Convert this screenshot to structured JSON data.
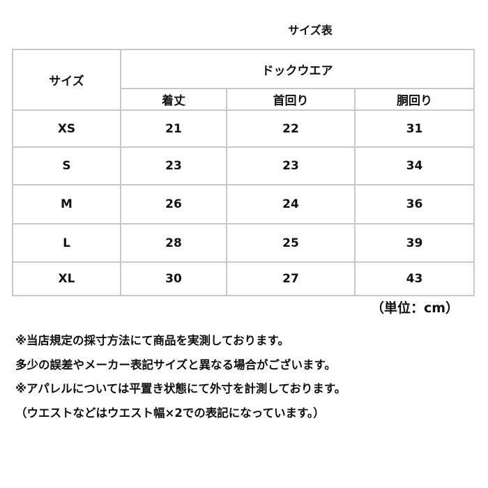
{
  "title": "サイズ表",
  "table": {
    "size_header": "サイズ",
    "group_header": "ドックウエア",
    "columns": [
      "着丈",
      "首回り",
      "胴回り"
    ],
    "rows": [
      {
        "size": "XS",
        "values": [
          "21",
          "22",
          "31"
        ]
      },
      {
        "size": "S",
        "values": [
          "23",
          "23",
          "34"
        ]
      },
      {
        "size": "M",
        "values": [
          "26",
          "24",
          "36"
        ]
      },
      {
        "size": "L",
        "values": [
          "28",
          "25",
          "39"
        ]
      },
      {
        "size": "XL",
        "values": [
          "30",
          "27",
          "43"
        ]
      }
    ]
  },
  "unit": "（単位：cm）",
  "notes": [
    "※当店規定の採寸方法にて商品を実測しております。",
    "多少の誤差やメーカー表記サイズと異なる場合がございます。",
    "※アパレルについては平置き状態にて外寸を計測しております。",
    "（ウエストなどはウエスト幅×2での表記になっています。）"
  ]
}
